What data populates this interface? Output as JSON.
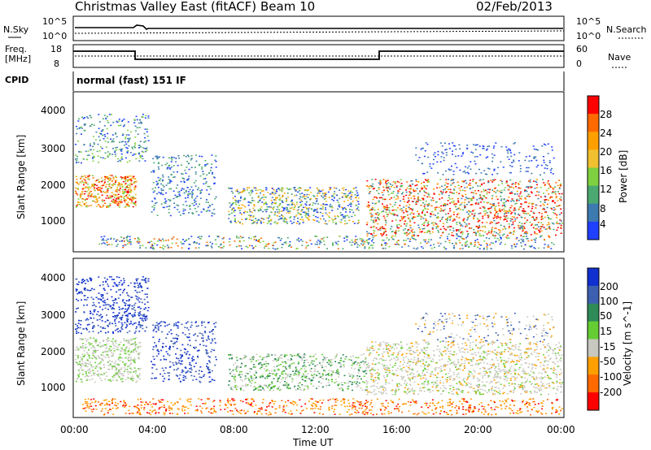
{
  "header": {
    "station": "Christmas Valley East (fitACF)",
    "beam": "Beam 10",
    "date": "02/Feb/2013"
  },
  "noise_panel": {
    "left_label": "N.Sky",
    "left_ticks": [
      "10^5",
      "10^0"
    ],
    "right_label": "N.Search",
    "right_ticks": [
      "10^5",
      "10^0"
    ]
  },
  "freq_panel": {
    "left_label_1": "Freq.",
    "left_label_2": "[MHz]",
    "left_ticks": [
      "18",
      "8"
    ],
    "right_label": "Nave",
    "right_ticks": [
      "60",
      "0"
    ]
  },
  "cpid": {
    "label": "CPID",
    "value": "normal (fast) 151 IF"
  },
  "power_panel": {
    "ylabel": "Slant Range [km]",
    "yticks": [
      "4000",
      "3000",
      "2000",
      "1000"
    ],
    "cbar_label": "Power [dB]",
    "cbar_ticks": [
      "28",
      "24",
      "20",
      "16",
      "12",
      "8",
      "4"
    ],
    "cbar_colors": [
      "#ff0000",
      "#ff6a00",
      "#ff9f00",
      "#f0c030",
      "#7fd040",
      "#4aa870",
      "#3c7ab0",
      "#2040ff"
    ]
  },
  "velocity_panel": {
    "ylabel": "Slant Range [km]",
    "yticks": [
      "4000",
      "3000",
      "2000",
      "1000"
    ],
    "cbar_label": "Velocity [m s^-1]",
    "cbar_ticks": [
      "200",
      "100",
      "50",
      "15",
      "-15",
      "-50",
      "-100",
      "-200"
    ],
    "cbar_colors": [
      "#1030d0",
      "#3c5fb0",
      "#2e8b57",
      "#66cc33",
      "#c8c8c0",
      "#ff9f00",
      "#ff6a00",
      "#ff0000"
    ]
  },
  "time_axis": {
    "ticks": [
      "00:00",
      "04:00",
      "08:00",
      "12:00",
      "16:00",
      "20:00",
      "00:00"
    ],
    "label": "Time UT"
  }
}
